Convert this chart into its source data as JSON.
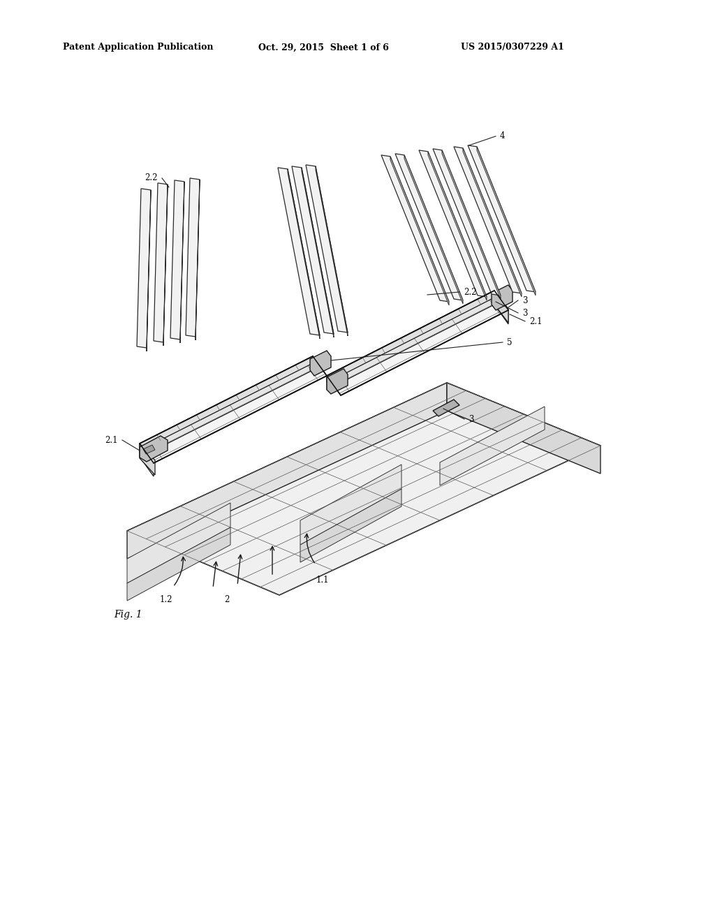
{
  "background_color": "#ffffff",
  "header_line1": "Patent Application Publication",
  "header_line2": "Oct. 29, 2015  Sheet 1 of 6",
  "header_line3": "US 2015/0307229 A1",
  "fig_label": "Fig. 1"
}
